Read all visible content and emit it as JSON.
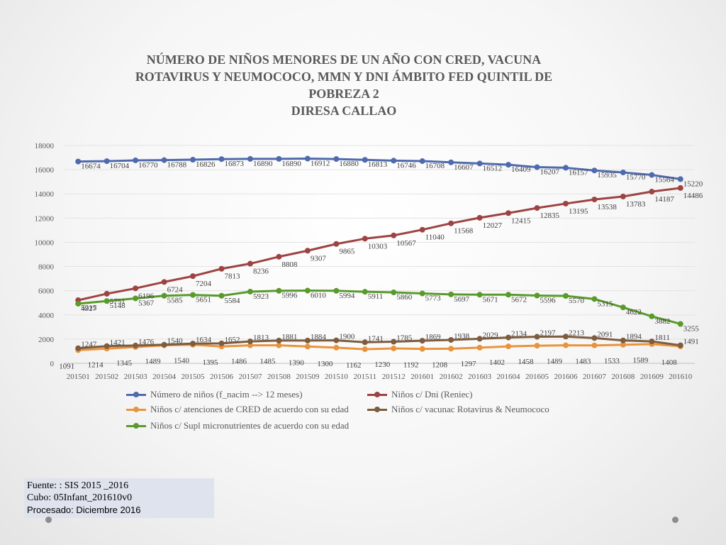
{
  "chart_data": {
    "type": "line",
    "title_lines": [
      "NÚMERO DE NIÑOS MENORES DE UN AÑO CON CRED, VACUNA",
      "ROTAVIRUS Y NEUMOCOCO, MMN Y DNI  ÁMBITO FED QUINTIL DE",
      "POBREZA 2",
      "DIRESA CALLAO"
    ],
    "categories": [
      "201501",
      "201502",
      "201503",
      "201504",
      "201505",
      "201506",
      "201507",
      "201508",
      "201509",
      "201510",
      "201511",
      "201512",
      "201601",
      "201602",
      "201603",
      "201604",
      "201605",
      "201606",
      "201607",
      "201608",
      "201609",
      "201610"
    ],
    "ylim": [
      0,
      18000
    ],
    "yticks": [
      0,
      2000,
      4000,
      6000,
      8000,
      10000,
      12000,
      14000,
      16000,
      18000
    ],
    "series": [
      {
        "name": "Número de niños (f_nacim --> 12 meses)",
        "color": "#4f6aad",
        "values": [
          16674,
          16704,
          16770,
          16788,
          16826,
          16873,
          16890,
          16890,
          16912,
          16880,
          16813,
          16746,
          16708,
          16607,
          16512,
          16409,
          16207,
          16157,
          15935,
          15770,
          15564,
          15220
        ]
      },
      {
        "name": "Niños c/ Dni (Reniec)",
        "color": "#9e4343",
        "values": [
          5215,
          5751,
          6196,
          6724,
          7204,
          7813,
          8236,
          8808,
          9307,
          9865,
          10303,
          10567,
          11040,
          11568,
          12027,
          12415,
          12835,
          13195,
          13538,
          13783,
          14187,
          14486
        ]
      },
      {
        "name": "Niños c/ atenciones de CRED de acuerdo con su edad",
        "color": "#e8943c",
        "values": [
          1091,
          1214,
          1345,
          1489,
          1540,
          1395,
          1486,
          1485,
          1390,
          1300,
          1162,
          1230,
          1192,
          1208,
          1297,
          1402,
          1458,
          1489,
          1483,
          1533,
          1589,
          1408
        ]
      },
      {
        "name": "Niños c/ vacunac Rotavirus & Neumococo",
        "color": "#7d5c3f",
        "values": [
          1247,
          1421,
          1476,
          1540,
          1634,
          1652,
          1813,
          1881,
          1884,
          1900,
          1741,
          1785,
          1869,
          1938,
          2029,
          2134,
          2197,
          2213,
          2091,
          1894,
          1811,
          1491
        ]
      },
      {
        "name": "Niños c/ Supl micronutrientes de acuerdo con su edad",
        "color": "#5a9a2c",
        "values": [
          4927,
          5148,
          5367,
          5585,
          5651,
          5584,
          5923,
          5996,
          6010,
          5994,
          5911,
          5860,
          5773,
          5697,
          5671,
          5672,
          5596,
          5570,
          5315,
          4622,
          3882,
          3255
        ]
      }
    ]
  },
  "source": {
    "line1": "Fuente: : SIS 2015 _2016",
    "line2": "Cubo: 05Infant_201610v0",
    "line3": "Procesado: Diciembre 2016"
  }
}
